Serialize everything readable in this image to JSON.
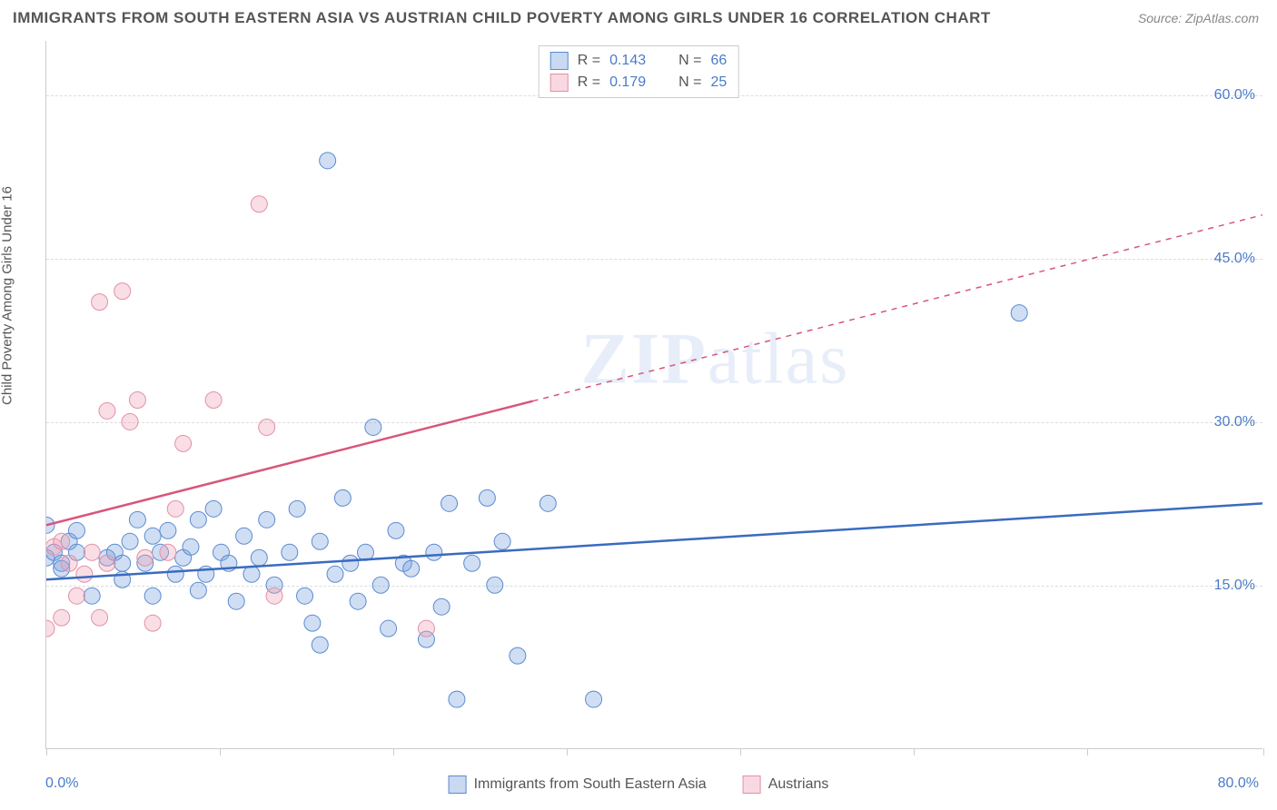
{
  "title": "IMMIGRANTS FROM SOUTH EASTERN ASIA VS AUSTRIAN CHILD POVERTY AMONG GIRLS UNDER 16 CORRELATION CHART",
  "source": "Source: ZipAtlas.com",
  "watermark_a": "ZIP",
  "watermark_b": "atlas",
  "chart": {
    "type": "scatter",
    "background_color": "#ffffff",
    "grid_color": "#dddddd",
    "axis_color": "#cccccc",
    "xlim": [
      0,
      80
    ],
    "ylim": [
      0,
      65
    ],
    "xtick_positions": [
      0,
      11.4,
      22.8,
      34.2,
      45.6,
      57.0,
      68.4,
      80.0
    ],
    "ytick_positions": [
      15,
      30,
      45,
      60
    ],
    "ytick_labels": [
      "15.0%",
      "30.0%",
      "45.0%",
      "60.0%"
    ],
    "xlabel_min": "0.0%",
    "xlabel_max": "80.0%",
    "yaxis_label": "Child Poverty Among Girls Under 16",
    "marker_radius": 9,
    "marker_opacity": 0.35,
    "trend_line_width": 2.5,
    "series": [
      {
        "name": "Immigrants from South Eastern Asia",
        "color_fill": "rgba(120,160,220,0.35)",
        "color_stroke": "#5a8bd0",
        "trend_color": "#3a6bc0",
        "trend_x1": 0,
        "trend_y1": 15.5,
        "trend_x2": 80,
        "trend_y2": 22.5,
        "trend_dash_from_x": null,
        "R": "0.143",
        "N": "66",
        "points": [
          [
            0,
            20.5
          ],
          [
            0,
            17.5
          ],
          [
            0.5,
            18
          ],
          [
            1,
            17
          ],
          [
            1,
            16.5
          ],
          [
            1.5,
            19
          ],
          [
            2,
            18
          ],
          [
            2,
            20
          ],
          [
            3,
            14
          ],
          [
            4,
            17.5
          ],
          [
            4.5,
            18
          ],
          [
            5,
            17
          ],
          [
            5,
            15.5
          ],
          [
            5.5,
            19
          ],
          [
            6,
            21
          ],
          [
            6.5,
            17
          ],
          [
            7,
            19.5
          ],
          [
            7,
            14
          ],
          [
            7.5,
            18
          ],
          [
            8,
            20
          ],
          [
            8.5,
            16
          ],
          [
            9,
            17.5
          ],
          [
            9.5,
            18.5
          ],
          [
            10,
            21
          ],
          [
            10,
            14.5
          ],
          [
            10.5,
            16
          ],
          [
            11,
            22
          ],
          [
            11.5,
            18
          ],
          [
            12,
            17
          ],
          [
            12.5,
            13.5
          ],
          [
            13,
            19.5
          ],
          [
            13.5,
            16
          ],
          [
            14,
            17.5
          ],
          [
            14.5,
            21
          ],
          [
            15,
            15
          ],
          [
            16,
            18
          ],
          [
            16.5,
            22
          ],
          [
            17,
            14
          ],
          [
            17.5,
            11.5
          ],
          [
            18,
            19
          ],
          [
            18,
            9.5
          ],
          [
            18.5,
            54
          ],
          [
            19,
            16
          ],
          [
            19.5,
            23
          ],
          [
            20,
            17
          ],
          [
            20.5,
            13.5
          ],
          [
            21,
            18
          ],
          [
            21.5,
            29.5
          ],
          [
            22,
            15
          ],
          [
            22.5,
            11
          ],
          [
            23,
            20
          ],
          [
            23.5,
            17
          ],
          [
            24,
            16.5
          ],
          [
            25,
            10
          ],
          [
            25.5,
            18
          ],
          [
            26,
            13
          ],
          [
            26.5,
            22.5
          ],
          [
            27,
            4.5
          ],
          [
            28,
            17
          ],
          [
            29,
            23
          ],
          [
            29.5,
            15
          ],
          [
            30,
            19
          ],
          [
            31,
            8.5
          ],
          [
            33,
            22.5
          ],
          [
            36,
            4.5
          ],
          [
            64,
            40
          ]
        ]
      },
      {
        "name": "Austrians",
        "color_fill": "rgba(240,160,180,0.35)",
        "color_stroke": "#e090a8",
        "trend_color": "#d8557a",
        "trend_x1": 0,
        "trend_y1": 20.5,
        "trend_x2": 80,
        "trend_y2": 49,
        "trend_dash_from_x": 32,
        "R": "0.179",
        "N": "25",
        "points": [
          [
            0,
            11
          ],
          [
            0.5,
            18.5
          ],
          [
            1,
            19
          ],
          [
            1,
            12
          ],
          [
            1.5,
            17
          ],
          [
            2,
            14
          ],
          [
            2.5,
            16
          ],
          [
            3,
            18
          ],
          [
            3.5,
            12
          ],
          [
            3.5,
            41
          ],
          [
            4,
            31
          ],
          [
            4,
            17
          ],
          [
            5,
            42
          ],
          [
            5.5,
            30
          ],
          [
            6,
            32
          ],
          [
            6.5,
            17.5
          ],
          [
            7,
            11.5
          ],
          [
            8,
            18
          ],
          [
            8.5,
            22
          ],
          [
            9,
            28
          ],
          [
            11,
            32
          ],
          [
            14,
            50
          ],
          [
            14.5,
            29.5
          ],
          [
            15,
            14
          ],
          [
            25,
            11
          ]
        ]
      }
    ]
  },
  "top_legend": {
    "r_label": "R =",
    "n_label": "N ="
  },
  "bottom_legend": {
    "series1": "Immigrants from South Eastern Asia",
    "series2": "Austrians"
  }
}
